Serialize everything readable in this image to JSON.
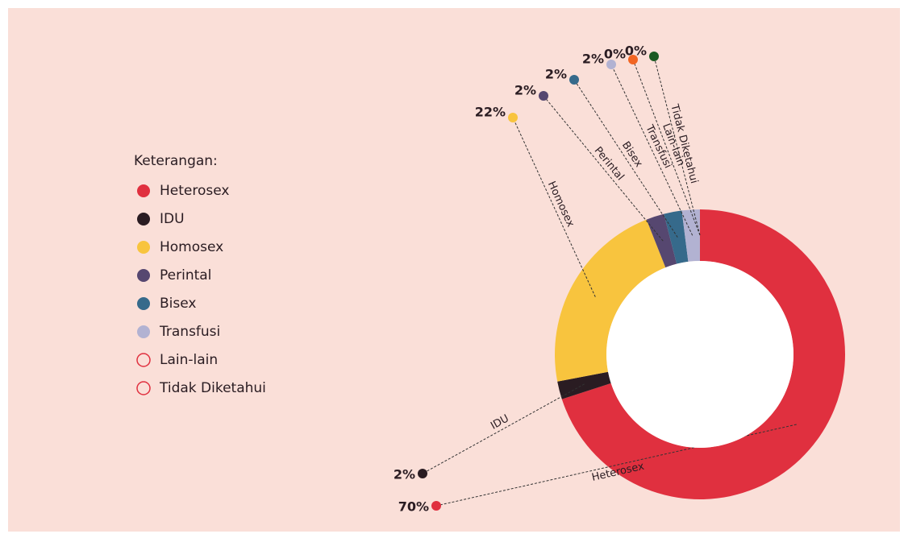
{
  "chart_data": {
    "type": "donut",
    "legend_title": "Keterangan:",
    "categories": [
      "Heterosex",
      "IDU",
      "Homosex",
      "Perintal",
      "Bisex",
      "Transfusi",
      "Lain-lain",
      "Tidak Diketahui"
    ],
    "values": [
      70,
      2,
      22,
      2,
      2,
      2,
      0,
      0
    ],
    "value_labels": [
      "70%",
      "2%",
      "22%",
      "2%",
      "2%",
      "2%",
      "0%",
      "0%"
    ],
    "colors": [
      "#e0303f",
      "#2a1c22",
      "#f8c43e",
      "#564770",
      "#366a8b",
      "#b2b2d2",
      "#f26522",
      "#1b5a22"
    ]
  }
}
